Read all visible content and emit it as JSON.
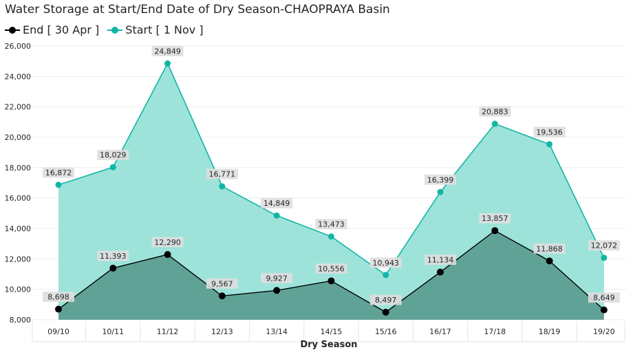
{
  "chart_data": {
    "type": "area",
    "title": "Water Storage at Start/End Date of Dry Season-CHAOPRAYA Basin",
    "xlabel": "Dry  Season",
    "ylabel": "",
    "categories": [
      "09/10",
      "10/11",
      "11/12",
      "12/13",
      "13/14",
      "14/15",
      "15/16",
      "16/17",
      "17/18",
      "18/19",
      "19/20"
    ],
    "ylim": [
      8000,
      26000
    ],
    "yticks": [
      8000,
      10000,
      12000,
      14000,
      16000,
      18000,
      20000,
      22000,
      24000,
      26000
    ],
    "ytick_labels": [
      "8,000",
      "10,000",
      "12,000",
      "14,000",
      "16,000",
      "18,000",
      "20,000",
      "22,000",
      "24,000",
      "26,000"
    ],
    "grid": true,
    "legend_position": "top-left",
    "series": [
      {
        "name": "End [ 30 Apr ]",
        "color": "#000000",
        "fill": "#5e9e93",
        "values": [
          8698,
          11393,
          12290,
          9567,
          9927,
          10556,
          8497,
          11134,
          13857,
          11868,
          8649
        ],
        "labels": [
          "8,698",
          "11,393",
          "12,290",
          "9,567",
          "9,927",
          "10,556",
          "8,497",
          "11,134",
          "13,857",
          "11,868",
          "8,649"
        ]
      },
      {
        "name": "Start [ 1 Nov ]",
        "color": "#12b5a6",
        "fill": "#9de3da",
        "values": [
          16872,
          18029,
          24849,
          16771,
          14849,
          13473,
          10943,
          16399,
          20883,
          19536,
          12072
        ],
        "labels": [
          "16,872",
          "18,029",
          "24,849",
          "16,771",
          "14,849",
          "13,473",
          "10,943",
          "16,399",
          "20,883",
          "19,536",
          "12,072"
        ]
      }
    ]
  }
}
